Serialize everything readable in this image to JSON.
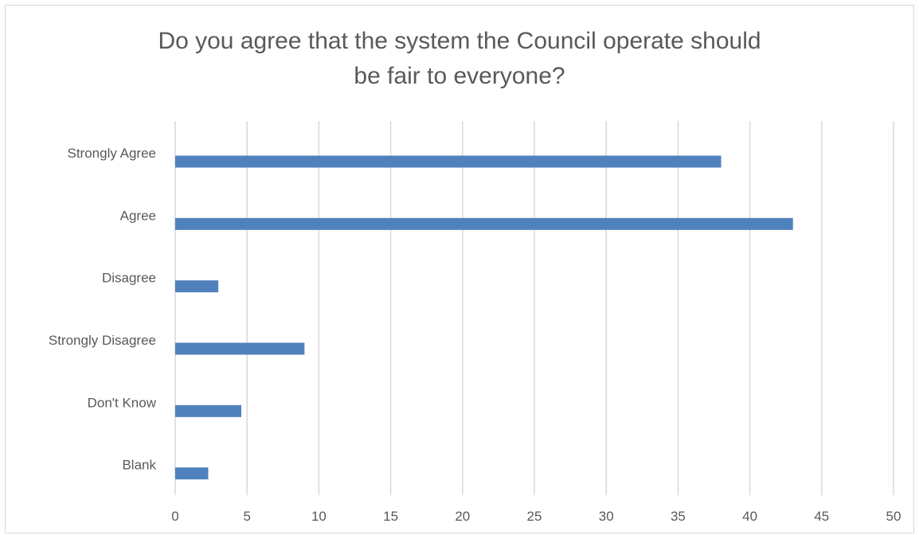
{
  "chart_data": {
    "type": "bar",
    "orientation": "horizontal",
    "title": "Do you agree that the system the Council operate should\nbe fair to everyone?",
    "categories": [
      "Strongly Agree",
      "Agree",
      "Disagree",
      "Strongly Disagree",
      "Don't Know",
      "Blank"
    ],
    "values": [
      38,
      43,
      3,
      9,
      4.6,
      2.3
    ],
    "xlim": [
      0,
      50
    ],
    "x_ticks": [
      "0",
      "5",
      "10",
      "15",
      "20",
      "25",
      "30",
      "35",
      "40",
      "45",
      "50"
    ],
    "xlabel": "",
    "ylabel": "",
    "grid": "vertical",
    "legend": "none",
    "bar_color": "#4f81bd"
  }
}
